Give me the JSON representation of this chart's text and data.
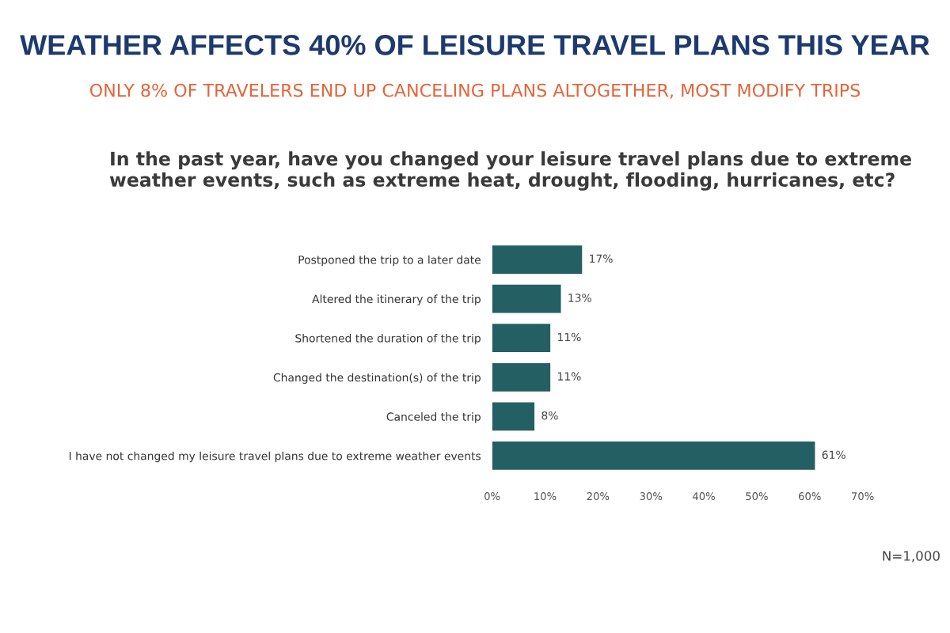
{
  "chart_data": {
    "type": "bar",
    "orientation": "horizontal",
    "title": "WEATHER AFFECTS 40% OF LEISURE TRAVEL PLANS THIS YEAR",
    "subtitle": "ONLY 8% OF TRAVELERS END UP CANCELING PLANS ALTOGETHER, MOST MODIFY TRIPS",
    "categories": [
      "Postponed the trip to a later date",
      "Altered the itinerary of the trip",
      "Shortened the duration of the trip",
      "Changed the destination(s) of the trip",
      "Canceled the trip",
      "I have not changed my leisure travel plans due to extreme weather events"
    ],
    "values": [
      17,
      13,
      11,
      11,
      8,
      61
    ],
    "value_labels": [
      "17%",
      "13%",
      "11%",
      "11%",
      "8%",
      "61%"
    ],
    "color": "#245f63",
    "xlim": [
      0,
      70
    ],
    "xticks": [
      {
        "value": 0,
        "label": "0%"
      },
      {
        "value": 10,
        "label": "10%"
      },
      {
        "value": 20,
        "label": "20%"
      },
      {
        "value": 30,
        "label": "30%"
      },
      {
        "value": 40,
        "label": "40%"
      },
      {
        "value": 50,
        "label": "50%"
      },
      {
        "value": 60,
        "label": "60%"
      },
      {
        "value": 70,
        "label": "70%"
      }
    ],
    "grid": false,
    "legend": false,
    "annotations": [
      "In the past year, have you changed your leisure travel plans due to extreme weather events, such as extreme heat, drought, flooding, hurricanes, etc?",
      "N=1,000"
    ]
  }
}
